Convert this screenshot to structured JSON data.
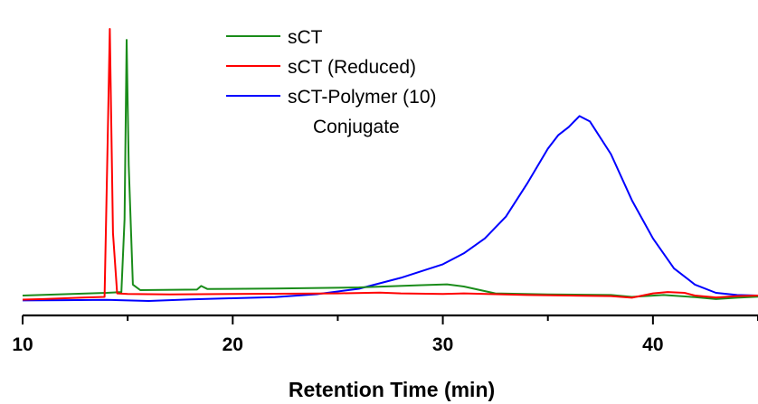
{
  "chart_data": {
    "type": "line",
    "title": "",
    "xlabel": "Retention Time (min)",
    "ylabel": "",
    "xlim": [
      10,
      45
    ],
    "ylim": [
      0,
      1.05
    ],
    "x_ticks": [
      10,
      20,
      30,
      40
    ],
    "y_axis_visible": false,
    "grid": false,
    "legend_position": "top-center",
    "series": [
      {
        "name": "sCT",
        "color": "#1a8c1a",
        "points": [
          [
            10,
            0.02
          ],
          [
            12,
            0.025
          ],
          [
            14,
            0.03
          ],
          [
            14.7,
            0.033
          ],
          [
            14.85,
            0.3
          ],
          [
            14.95,
            0.96
          ],
          [
            15.05,
            0.5
          ],
          [
            15.25,
            0.06
          ],
          [
            15.6,
            0.04
          ],
          [
            18.3,
            0.042
          ],
          [
            18.5,
            0.055
          ],
          [
            18.8,
            0.044
          ],
          [
            22,
            0.046
          ],
          [
            26,
            0.05
          ],
          [
            29,
            0.058
          ],
          [
            30.2,
            0.061
          ],
          [
            31,
            0.053
          ],
          [
            32.5,
            0.028
          ],
          [
            35,
            0.024
          ],
          [
            38,
            0.022
          ],
          [
            39,
            0.015
          ],
          [
            40.5,
            0.022
          ],
          [
            42,
            0.014
          ],
          [
            43,
            0.007
          ],
          [
            44,
            0.012
          ],
          [
            45,
            0.016
          ]
        ]
      },
      {
        "name": "sCT (Reduced)",
        "color": "#ff0000",
        "points": [
          [
            10,
            0.005
          ],
          [
            11,
            0.007
          ],
          [
            12,
            0.01
          ],
          [
            13,
            0.013
          ],
          [
            13.9,
            0.015
          ],
          [
            14.05,
            0.6
          ],
          [
            14.15,
            1.0
          ],
          [
            14.3,
            0.25
          ],
          [
            14.5,
            0.028
          ],
          [
            15,
            0.026
          ],
          [
            17,
            0.024
          ],
          [
            20,
            0.026
          ],
          [
            23,
            0.027
          ],
          [
            25,
            0.028
          ],
          [
            27,
            0.031
          ],
          [
            28,
            0.028
          ],
          [
            30,
            0.026
          ],
          [
            31,
            0.028
          ],
          [
            32.5,
            0.025
          ],
          [
            34,
            0.022
          ],
          [
            36,
            0.02
          ],
          [
            38,
            0.018
          ],
          [
            39,
            0.012
          ],
          [
            40,
            0.028
          ],
          [
            40.7,
            0.033
          ],
          [
            41.5,
            0.03
          ],
          [
            42,
            0.02
          ],
          [
            43,
            0.013
          ],
          [
            44,
            0.018
          ],
          [
            45,
            0.02
          ]
        ]
      },
      {
        "name": "sCT-Polymer (10)\nConjugate",
        "color": "#0000ff",
        "points": [
          [
            10,
            0.002
          ],
          [
            12,
            0.003
          ],
          [
            14,
            0.004
          ],
          [
            16,
            0.0
          ],
          [
            18,
            0.006
          ],
          [
            20,
            0.01
          ],
          [
            22,
            0.014
          ],
          [
            24,
            0.025
          ],
          [
            26,
            0.045
          ],
          [
            28,
            0.085
          ],
          [
            29,
            0.11
          ],
          [
            30,
            0.135
          ],
          [
            31,
            0.175
          ],
          [
            32,
            0.23
          ],
          [
            33,
            0.31
          ],
          [
            34,
            0.43
          ],
          [
            35,
            0.56
          ],
          [
            35.5,
            0.61
          ],
          [
            36,
            0.64
          ],
          [
            36.5,
            0.68
          ],
          [
            37,
            0.66
          ],
          [
            38,
            0.54
          ],
          [
            39,
            0.37
          ],
          [
            40,
            0.23
          ],
          [
            41,
            0.12
          ],
          [
            42,
            0.06
          ],
          [
            43,
            0.03
          ],
          [
            44,
            0.022
          ],
          [
            45,
            0.02
          ]
        ]
      }
    ]
  }
}
